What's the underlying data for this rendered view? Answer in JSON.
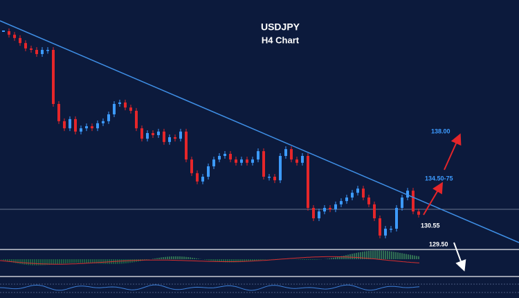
{
  "chart_data": {
    "type": "candlestick",
    "title": "USDJPY",
    "subtitle": "H4 Chart",
    "annotations": [
      "138.00",
      "134.50-75",
      "130.55",
      "129.50"
    ],
    "ylim": [
      129.3,
      137.0
    ],
    "up_color": "#3d9bff",
    "down_color": "#e5262a",
    "values": [
      136.65,
      136.53,
      136.42,
      136.25,
      136.07,
      136.02,
      135.88,
      136.02,
      136.02,
      134.2,
      133.62,
      133.38,
      133.69,
      133.27,
      133.38,
      133.45,
      133.38,
      133.55,
      133.62,
      133.85,
      134.2,
      134.25,
      134.08,
      133.97,
      133.38,
      133.03,
      133.22,
      133.15,
      133.27,
      132.92,
      133.08,
      133.03,
      133.27,
      132.33,
      131.87,
      131.59,
      131.75,
      132.1,
      132.33,
      132.45,
      132.52,
      132.33,
      132.22,
      132.33,
      132.22,
      132.33,
      132.61,
      131.75,
      131.75,
      131.63,
      132.45,
      132.68,
      132.33,
      132.22,
      132.45,
      130.7,
      130.35,
      130.58,
      130.7,
      130.65,
      130.82,
      130.93,
      131.05,
      131.21,
      131.35,
      131.05,
      130.82,
      130.35,
      129.77,
      130.0,
      130.0,
      130.7,
      131.05,
      131.28,
      130.58,
      130.47
    ]
  }
}
